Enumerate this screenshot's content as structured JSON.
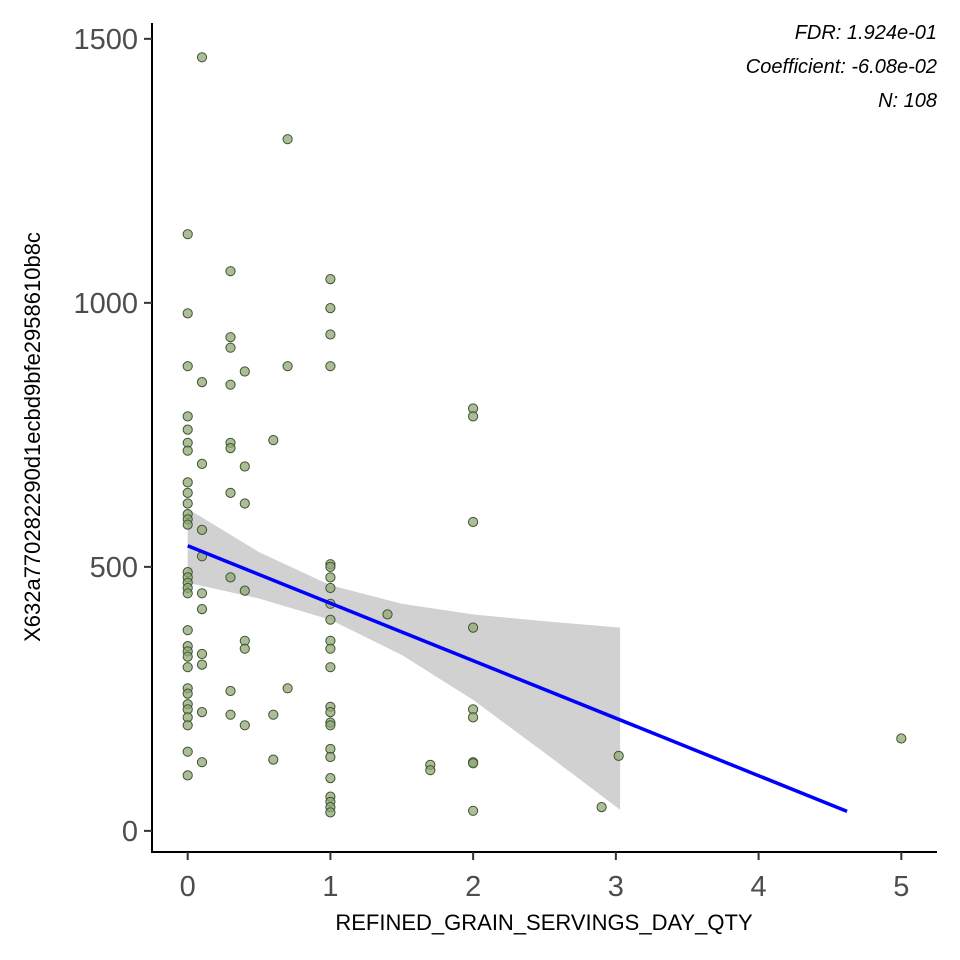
{
  "chart_data": {
    "type": "scatter",
    "title": "",
    "xlabel": "REFINED_GRAIN_SERVINGS_DAY_QTY",
    "ylabel": "X632a770282290d1ecbd9bfe2958610b8c",
    "xlim": [
      -0.25,
      5.25
    ],
    "ylim": [
      -40,
      1530
    ],
    "xticks": [
      0,
      1,
      2,
      3,
      4,
      5
    ],
    "yticks": [
      0,
      500,
      1000,
      1500
    ],
    "grid": false,
    "annotations": [
      "FDR: 1.924e-01",
      "Coefficient: -6.08e-02",
      "N: 108"
    ],
    "points": [
      {
        "x": 0,
        "y": 1130
      },
      {
        "x": 0,
        "y": 980
      },
      {
        "x": 0,
        "y": 880
      },
      {
        "x": 0,
        "y": 785
      },
      {
        "x": 0,
        "y": 760
      },
      {
        "x": 0,
        "y": 735
      },
      {
        "x": 0,
        "y": 720
      },
      {
        "x": 0,
        "y": 660
      },
      {
        "x": 0,
        "y": 640
      },
      {
        "x": 0,
        "y": 620
      },
      {
        "x": 0,
        "y": 600
      },
      {
        "x": 0,
        "y": 590
      },
      {
        "x": 0,
        "y": 580
      },
      {
        "x": 0,
        "y": 490
      },
      {
        "x": 0,
        "y": 480
      },
      {
        "x": 0,
        "y": 470
      },
      {
        "x": 0,
        "y": 460
      },
      {
        "x": 0,
        "y": 450
      },
      {
        "x": 0,
        "y": 380
      },
      {
        "x": 0,
        "y": 350
      },
      {
        "x": 0,
        "y": 340
      },
      {
        "x": 0,
        "y": 330
      },
      {
        "x": 0,
        "y": 310
      },
      {
        "x": 0,
        "y": 270
      },
      {
        "x": 0,
        "y": 260
      },
      {
        "x": 0,
        "y": 240
      },
      {
        "x": 0,
        "y": 230
      },
      {
        "x": 0,
        "y": 215
      },
      {
        "x": 0,
        "y": 200
      },
      {
        "x": 0,
        "y": 150
      },
      {
        "x": 0,
        "y": 105
      },
      {
        "x": 0.1,
        "y": 1465
      },
      {
        "x": 0.1,
        "y": 850
      },
      {
        "x": 0.1,
        "y": 695
      },
      {
        "x": 0.1,
        "y": 570
      },
      {
        "x": 0.1,
        "y": 520
      },
      {
        "x": 0.1,
        "y": 450
      },
      {
        "x": 0.1,
        "y": 420
      },
      {
        "x": 0.1,
        "y": 335
      },
      {
        "x": 0.1,
        "y": 315
      },
      {
        "x": 0.1,
        "y": 225
      },
      {
        "x": 0.1,
        "y": 130
      },
      {
        "x": 0.3,
        "y": 1060
      },
      {
        "x": 0.3,
        "y": 935
      },
      {
        "x": 0.3,
        "y": 915
      },
      {
        "x": 0.3,
        "y": 845
      },
      {
        "x": 0.3,
        "y": 735
      },
      {
        "x": 0.3,
        "y": 725
      },
      {
        "x": 0.3,
        "y": 640
      },
      {
        "x": 0.3,
        "y": 480
      },
      {
        "x": 0.3,
        "y": 265
      },
      {
        "x": 0.3,
        "y": 220
      },
      {
        "x": 0.4,
        "y": 870
      },
      {
        "x": 0.4,
        "y": 690
      },
      {
        "x": 0.4,
        "y": 620
      },
      {
        "x": 0.4,
        "y": 455
      },
      {
        "x": 0.4,
        "y": 360
      },
      {
        "x": 0.4,
        "y": 345
      },
      {
        "x": 0.4,
        "y": 200
      },
      {
        "x": 0.6,
        "y": 740
      },
      {
        "x": 0.6,
        "y": 220
      },
      {
        "x": 0.6,
        "y": 135
      },
      {
        "x": 0.7,
        "y": 1310
      },
      {
        "x": 0.7,
        "y": 880
      },
      {
        "x": 0.7,
        "y": 270
      },
      {
        "x": 1,
        "y": 1045
      },
      {
        "x": 1,
        "y": 990
      },
      {
        "x": 1,
        "y": 940
      },
      {
        "x": 1,
        "y": 880
      },
      {
        "x": 1,
        "y": 505
      },
      {
        "x": 1,
        "y": 500
      },
      {
        "x": 1,
        "y": 480
      },
      {
        "x": 1,
        "y": 460
      },
      {
        "x": 1,
        "y": 430
      },
      {
        "x": 1,
        "y": 400
      },
      {
        "x": 1,
        "y": 360
      },
      {
        "x": 1,
        "y": 345
      },
      {
        "x": 1,
        "y": 310
      },
      {
        "x": 1,
        "y": 235
      },
      {
        "x": 1,
        "y": 225
      },
      {
        "x": 1,
        "y": 205
      },
      {
        "x": 1,
        "y": 200
      },
      {
        "x": 1,
        "y": 155
      },
      {
        "x": 1,
        "y": 140
      },
      {
        "x": 1,
        "y": 100
      },
      {
        "x": 1,
        "y": 65
      },
      {
        "x": 1,
        "y": 55
      },
      {
        "x": 1,
        "y": 45
      },
      {
        "x": 1,
        "y": 35
      },
      {
        "x": 1.4,
        "y": 410
      },
      {
        "x": 1.7,
        "y": 125
      },
      {
        "x": 1.7,
        "y": 115
      },
      {
        "x": 2,
        "y": 800
      },
      {
        "x": 2,
        "y": 785
      },
      {
        "x": 2,
        "y": 585
      },
      {
        "x": 2,
        "y": 385
      },
      {
        "x": 2,
        "y": 230
      },
      {
        "x": 2,
        "y": 215
      },
      {
        "x": 2,
        "y": 130
      },
      {
        "x": 2,
        "y": 128
      },
      {
        "x": 2,
        "y": 38
      },
      {
        "x": 2.9,
        "y": 45
      },
      {
        "x": 3.02,
        "y": 142
      },
      {
        "x": 5,
        "y": 175
      }
    ],
    "fit_line": {
      "x": [
        0,
        4.62
      ],
      "y": [
        540,
        37
      ],
      "color": "#0000ff"
    },
    "confidence_band": {
      "x": [
        0,
        0.5,
        1,
        1.5,
        2,
        2.5,
        3.03
      ],
      "upper": [
        610,
        528,
        465,
        430,
        410,
        397,
        385
      ],
      "lower": [
        470,
        440,
        400,
        333,
        248,
        148,
        40
      ]
    },
    "colors": {
      "points": "#8fa876",
      "points_edge": "#3f5230",
      "band": "#bdbdbd",
      "line": "#0000ff"
    }
  }
}
